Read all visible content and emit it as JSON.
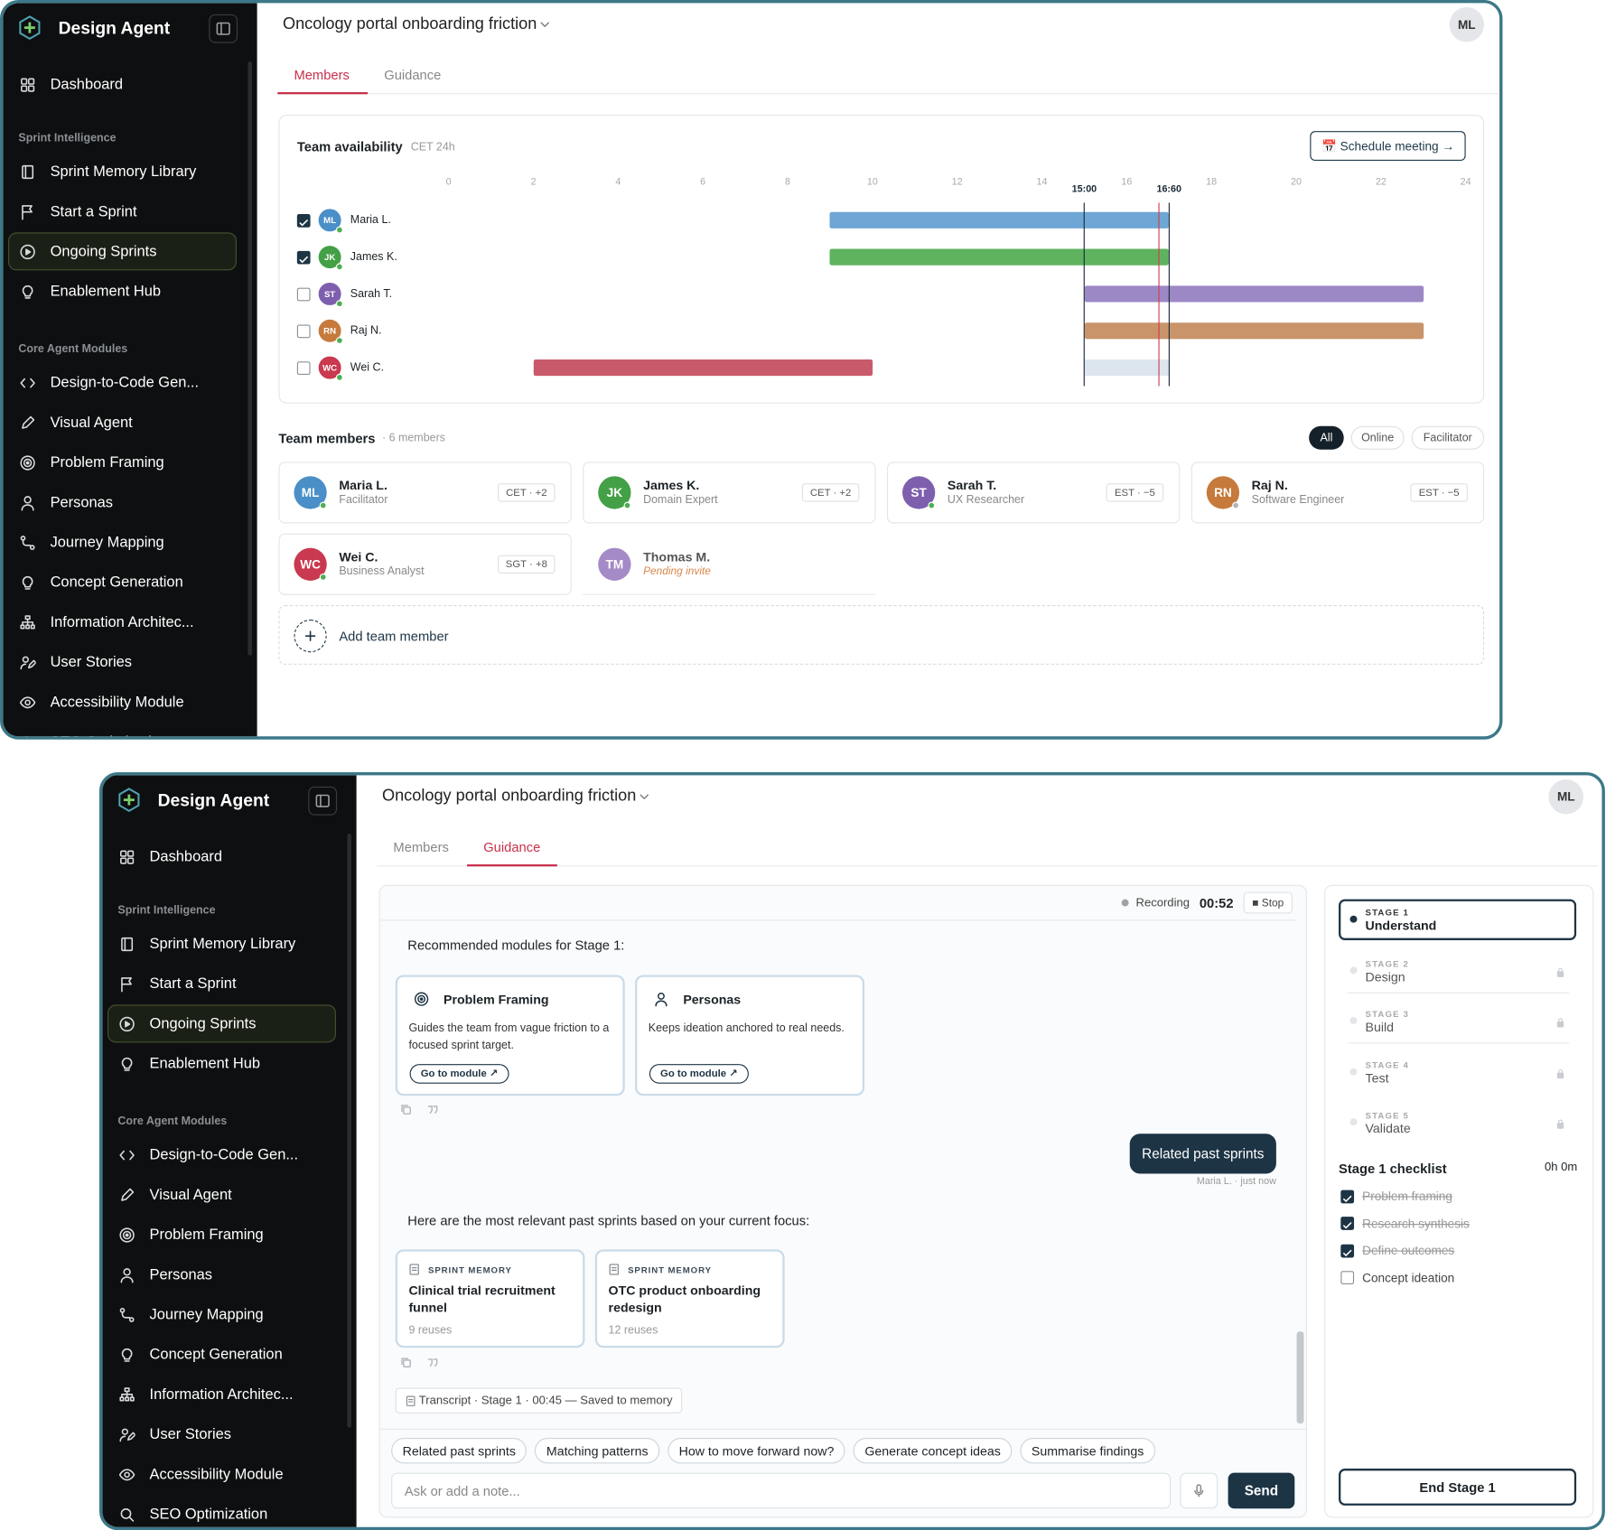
{
  "app": {
    "name": "Design Agent",
    "user": "ML",
    "dashboard": "Dashboard",
    "sections": [
      {
        "title": "Sprint Intelligence",
        "items": [
          {
            "label": "Sprint Memory Library"
          },
          {
            "label": "Start a Sprint"
          },
          {
            "label": "Ongoing Sprints",
            "active": true
          },
          {
            "label": "Enablement Hub"
          }
        ]
      },
      {
        "title": "Core Agent Modules",
        "items": [
          {
            "label": "Design-to-Code Gen..."
          },
          {
            "label": "Visual Agent"
          },
          {
            "label": "Problem Framing"
          },
          {
            "label": "Personas"
          },
          {
            "label": "Journey Mapping"
          },
          {
            "label": "Concept Generation"
          },
          {
            "label": "Information Architec..."
          },
          {
            "label": "User Stories"
          },
          {
            "label": "Accessibility Module"
          },
          {
            "label": "SEO Optimization"
          }
        ]
      }
    ]
  },
  "project": {
    "title": "Oncology portal onboarding friction",
    "tabs": [
      "Members",
      "Guidance"
    ]
  },
  "views": [
    {
      "active_tab": 0,
      "availability": {
        "title": "Team availability",
        "subtitle": "CET 24h",
        "action": "📅 Schedule meeting →",
        "xlim": [
          0,
          24
        ],
        "xticks": [
          0,
          2,
          4,
          6,
          8,
          10,
          12,
          14,
          16,
          18,
          20,
          22,
          24
        ],
        "markers": [
          {
            "value": 15,
            "label": "15:00"
          },
          {
            "value": 17,
            "label": "16:60"
          }
        ],
        "now": 16.75,
        "rows": [
          {
            "name": "Maria L.",
            "initials": "ML",
            "avatar": "#4a8fc7",
            "color": "#6ea7d5",
            "checked": true,
            "start": 9,
            "end": 17
          },
          {
            "name": "James K.",
            "initials": "JK",
            "avatar": "#43a047",
            "color": "#5fb35f",
            "checked": true,
            "start": 9,
            "end": 17
          },
          {
            "name": "Sarah T.",
            "initials": "ST",
            "avatar": "#7e5fae",
            "color": "#9d88c6",
            "checked": false,
            "start": 15,
            "end": 23
          },
          {
            "name": "Raj N.",
            "initials": "RN",
            "avatar": "#c67a3c",
            "color": "#c9946a",
            "checked": false,
            "start": 15,
            "end": 23
          },
          {
            "name": "Wei C.",
            "initials": "WC",
            "avatar": "#c9394f",
            "color": "#c95a6c",
            "checked": false,
            "start": 2,
            "end": 10
          }
        ]
      },
      "team": {
        "title": "Team members",
        "count": "· 6 members",
        "filters": [
          {
            "label": "All",
            "active": true
          },
          {
            "label": "Online"
          },
          {
            "label": "Facilitator"
          }
        ],
        "members": [
          {
            "name": "Maria L.",
            "initials": "ML",
            "role": "Facilitator",
            "tz": "CET · +2",
            "color": "#4a8fc7",
            "online": true
          },
          {
            "name": "James K.",
            "initials": "JK",
            "role": "Domain Expert",
            "tz": "CET · +2",
            "color": "#43a047",
            "online": true
          },
          {
            "name": "Sarah T.",
            "initials": "ST",
            "role": "UX Researcher",
            "tz": "EST · −5",
            "color": "#7e5fae",
            "online": true
          },
          {
            "name": "Raj N.",
            "initials": "RN",
            "role": "Software Engineer",
            "tz": "EST · −5",
            "color": "#c67a3c",
            "online": false
          },
          {
            "name": "Wei C.",
            "initials": "WC",
            "role": "Business Analyst",
            "tz": "SGT · +8",
            "color": "#c9394f",
            "online": true
          },
          {
            "name": "Thomas M.",
            "initials": "TM",
            "role": "Pending invite",
            "color": "#a48ac6",
            "pending": true
          }
        ],
        "add": "Add team member"
      }
    },
    {
      "active_tab": 1,
      "chat": {
        "recording": "Recording",
        "time": "00:52",
        "stop": "■ Stop",
        "intro": "Recommended modules for Stage 1:",
        "modules": [
          {
            "title": "Problem Framing",
            "desc": "Guides the team from vague friction to a focused sprint target.",
            "link": "Go to module ↗"
          },
          {
            "title": "Personas",
            "desc": "Keeps ideation anchored to real needs.",
            "link": "Go to module ↗"
          }
        ],
        "user_message": "Related past sprints",
        "user_meta": "Maria L. · just now",
        "reply": "Here are the most relevant past sprints based on your current focus:",
        "sprints": [
          {
            "tag": "SPRINT MEMORY",
            "title": "Clinical trial recruitment funnel",
            "meta": "9 reuses"
          },
          {
            "tag": "SPRINT MEMORY",
            "title": "OTC product onboarding redesign",
            "meta": "12 reuses"
          }
        ],
        "transcript": "Transcript · Stage 1 · 00:45 — Saved to memory",
        "suggestions": [
          "Related past sprints",
          "Matching patterns",
          "How to move forward now?",
          "Generate concept ideas",
          "Summarise findings"
        ],
        "placeholder": "Ask or add a note...",
        "send": "Send"
      },
      "stages": {
        "list": [
          {
            "label": "STAGE 1",
            "name": "Understand",
            "active": true
          },
          {
            "label": "STAGE 2",
            "name": "Design"
          },
          {
            "label": "STAGE 3",
            "name": "Build"
          },
          {
            "label": "STAGE 4",
            "name": "Test"
          },
          {
            "label": "STAGE 5",
            "name": "Validate"
          }
        ],
        "checklist_title": "Stage 1 checklist",
        "elapsed": "0h 0m",
        "checklist": [
          {
            "text": "Problem framing",
            "done": true
          },
          {
            "text": "Research synthesis",
            "done": true
          },
          {
            "text": "Define outcomes",
            "done": true
          },
          {
            "text": "Concept ideation",
            "done": false
          }
        ],
        "end": "End Stage 1"
      }
    }
  ]
}
